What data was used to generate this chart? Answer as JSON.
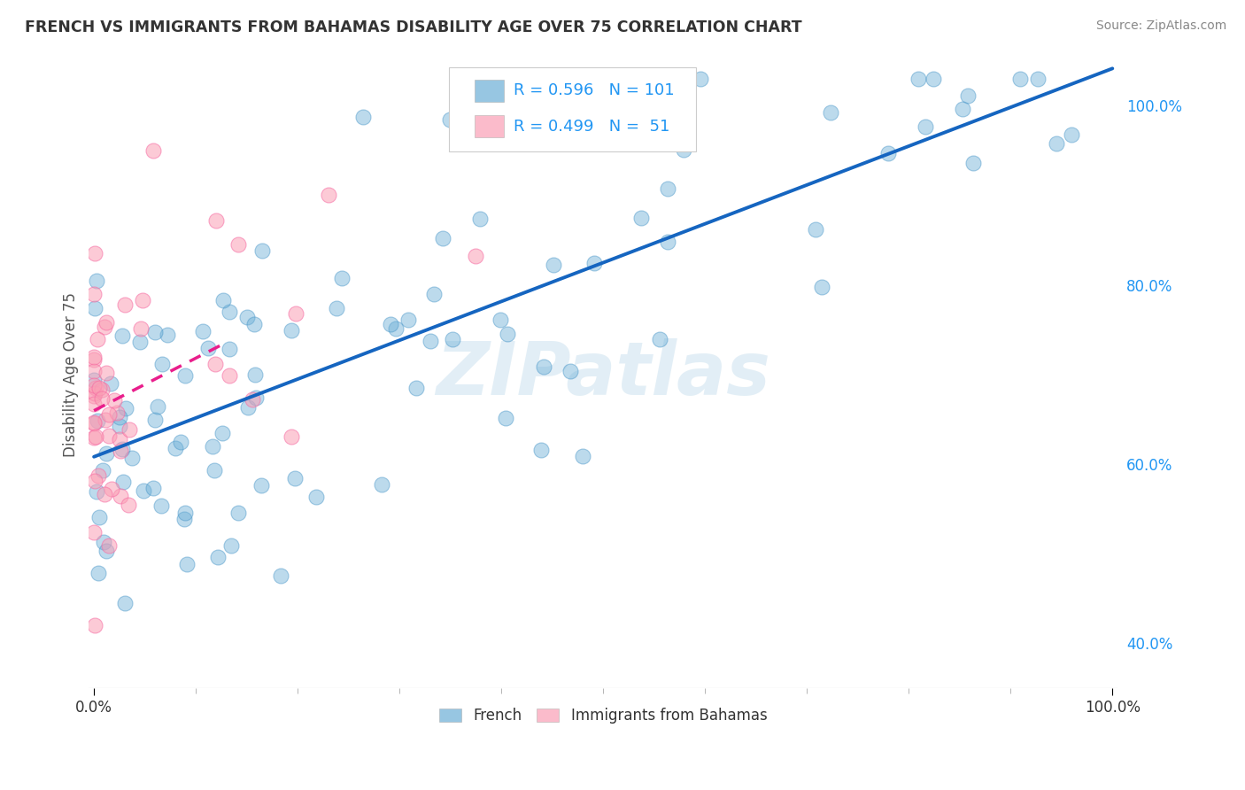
{
  "title": "FRENCH VS IMMIGRANTS FROM BAHAMAS DISABILITY AGE OVER 75 CORRELATION CHART",
  "source": "Source: ZipAtlas.com",
  "ylabel": "Disability Age Over 75",
  "R_french": 0.596,
  "N_french": 101,
  "R_bahamas": 0.499,
  "N_bahamas": 51,
  "french_color": "#6baed6",
  "french_edge_color": "#4292c6",
  "bahamas_color": "#fa9fb5",
  "bahamas_edge_color": "#f768a1",
  "french_line_color": "#1565c0",
  "bahamas_line_color": "#e91e8c",
  "watermark_color": "#d0e4f0",
  "background_color": "#ffffff",
  "grid_color": "#cccccc",
  "title_color": "#333333",
  "source_color": "#888888",
  "ylabel_color": "#555555",
  "tick_color_right": "#2196F3",
  "tick_color_bottom": "#333333",
  "legend_text_color": "#2196F3",
  "legend_N_color": "#e53935",
  "ylim_min": 0.35,
  "ylim_max": 1.05,
  "xlim_min": -0.005,
  "xlim_max": 1.005,
  "seed": 7
}
